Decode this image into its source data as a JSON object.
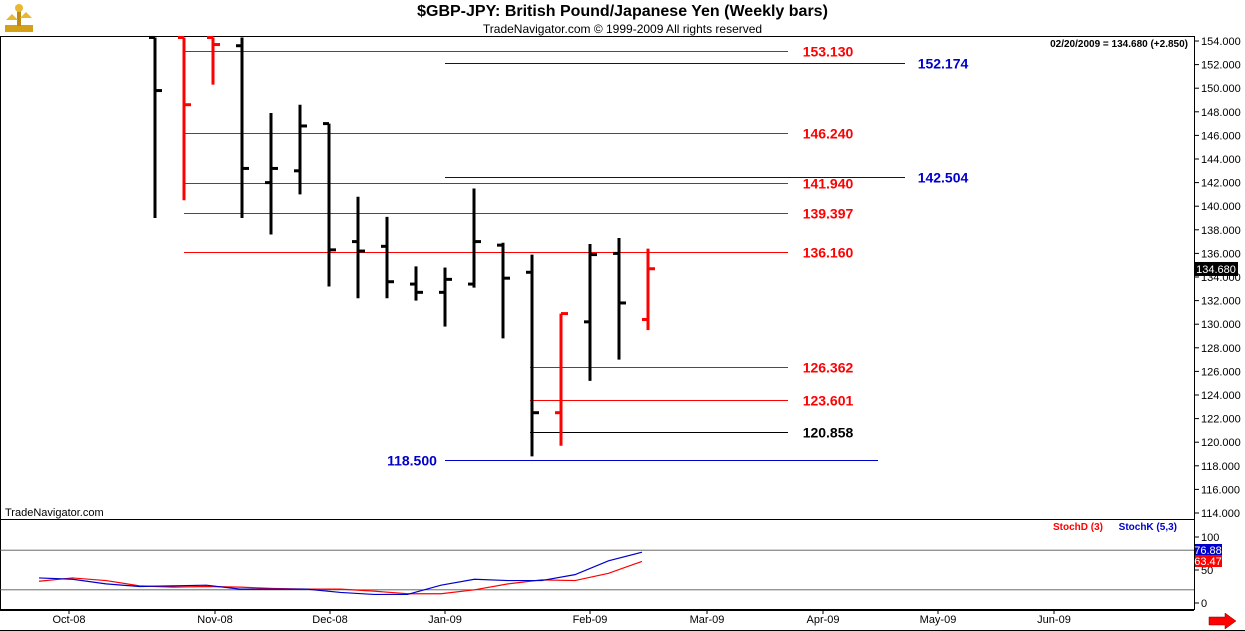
{
  "header": {
    "title": "$GBP-JPY:  British Pound/Japanese Yen  (Weekly bars)",
    "subtitle": "TradeNavigator.com © 1999-2009 All rights reserved",
    "status": "02/20/2009 = 134.680 (+2.850)",
    "watermark": "TradeNavigator.com",
    "logo_icon": "scale-logo-icon",
    "scroll_icon": "right-arrow-icon"
  },
  "colors": {
    "up": "#000000",
    "down": "#ff0000",
    "red_level": "#ff0000",
    "blue_level": "#0000cc",
    "stochD": "#ff0000",
    "stochK": "#0000cc",
    "last_price_bg": "#000000"
  },
  "chart_data": [
    {
      "type": "ohlc",
      "title": "$GBP-JPY:  British Pound/Japanese Yen  (Weekly bars)",
      "ylim": [
        113.5,
        154.3
      ],
      "y_ticks": [
        114.0,
        116.0,
        118.0,
        120.0,
        122.0,
        124.0,
        126.0,
        128.0,
        130.0,
        132.0,
        134.0,
        136.0,
        138.0,
        140.0,
        142.0,
        144.0,
        146.0,
        148.0,
        150.0,
        152.0,
        154.0
      ],
      "x_ticks": [
        "Oct-08",
        "Nov-08",
        "Dec-08",
        "Jan-09",
        "Feb-09",
        "Mar-09",
        "Apr-09",
        "May-09",
        "Jun-09"
      ],
      "last_price": 134.68,
      "last_price_label": "134.680",
      "bars": [
        {
          "o": 154.3,
          "h": 154.3,
          "l": 139.0,
          "c": 149.8,
          "dir": "up"
        },
        {
          "o": 154.3,
          "h": 154.3,
          "l": 140.5,
          "c": 148.6,
          "dir": "down"
        },
        {
          "o": 154.3,
          "h": 154.3,
          "l": 150.3,
          "c": 153.7,
          "dir": "down"
        },
        {
          "o": 153.6,
          "h": 154.3,
          "l": 139.0,
          "c": 143.2,
          "dir": "up"
        },
        {
          "o": 142.0,
          "h": 147.9,
          "l": 137.6,
          "c": 143.2,
          "dir": "up"
        },
        {
          "o": 143.0,
          "h": 148.6,
          "l": 141.0,
          "c": 146.8,
          "dir": "up"
        },
        {
          "o": 147.0,
          "h": 147.0,
          "l": 133.2,
          "c": 136.3,
          "dir": "up"
        },
        {
          "o": 137.0,
          "h": 140.8,
          "l": 132.2,
          "c": 136.2,
          "dir": "up"
        },
        {
          "o": 136.6,
          "h": 139.1,
          "l": 132.2,
          "c": 133.6,
          "dir": "up"
        },
        {
          "o": 133.4,
          "h": 134.9,
          "l": 132.0,
          "c": 132.7,
          "dir": "up"
        },
        {
          "o": 132.7,
          "h": 134.8,
          "l": 129.8,
          "c": 133.8,
          "dir": "up"
        },
        {
          "o": 133.4,
          "h": 141.5,
          "l": 133.1,
          "c": 137.0,
          "dir": "up"
        },
        {
          "o": 136.7,
          "h": 136.9,
          "l": 128.8,
          "c": 133.9,
          "dir": "up"
        },
        {
          "o": 134.4,
          "h": 135.9,
          "l": 118.8,
          "c": 122.5,
          "dir": "up"
        },
        {
          "o": 122.5,
          "h": 130.9,
          "l": 119.7,
          "c": 130.9,
          "dir": "down"
        },
        {
          "o": 130.2,
          "h": 136.8,
          "l": 125.2,
          "c": 135.9,
          "dir": "up"
        },
        {
          "o": 136.0,
          "h": 137.3,
          "l": 127.0,
          "c": 131.8,
          "dir": "up"
        },
        {
          "o": 130.4,
          "h": 136.4,
          "l": 129.5,
          "c": 134.7,
          "dir": "down"
        }
      ],
      "levels": [
        {
          "value": 153.13,
          "label": "153.130",
          "color": "red"
        },
        {
          "value": 152.174,
          "label": "152.174",
          "color": "blue"
        },
        {
          "value": 146.24,
          "label": "146.240",
          "color": "red"
        },
        {
          "value": 142.504,
          "label": "142.504",
          "color": "blue"
        },
        {
          "value": 141.94,
          "label": "141.940",
          "color": "red"
        },
        {
          "value": 139.397,
          "label": "139.397",
          "color": "red"
        },
        {
          "value": 136.16,
          "label": "136.160",
          "color": "red"
        },
        {
          "value": 126.362,
          "label": "126.362",
          "color": "red"
        },
        {
          "value": 123.601,
          "label": "123.601",
          "color": "red"
        },
        {
          "value": 120.858,
          "label": "120.858",
          "color": "black"
        },
        {
          "value": 118.5,
          "label": "118.500",
          "color": "blue"
        }
      ]
    },
    {
      "type": "line",
      "ylim": [
        0,
        100
      ],
      "y_ticks": [
        0,
        50,
        100
      ],
      "legend": [
        "StochD (3)",
        "StochK (5,3)"
      ],
      "last_values": [
        "76.88",
        "63.47"
      ],
      "series": [
        {
          "name": "StochD (3)",
          "values": [
            33,
            38,
            34,
            26,
            24,
            25,
            24,
            22,
            21,
            21,
            18,
            14,
            14,
            20,
            29,
            35,
            34,
            45,
            63
          ]
        },
        {
          "name": "StochK (5,3)",
          "values": [
            38,
            36,
            29,
            25,
            26,
            27,
            21,
            21,
            21,
            16,
            13,
            13,
            27,
            36,
            34,
            34,
            43,
            64,
            77
          ]
        }
      ]
    }
  ]
}
